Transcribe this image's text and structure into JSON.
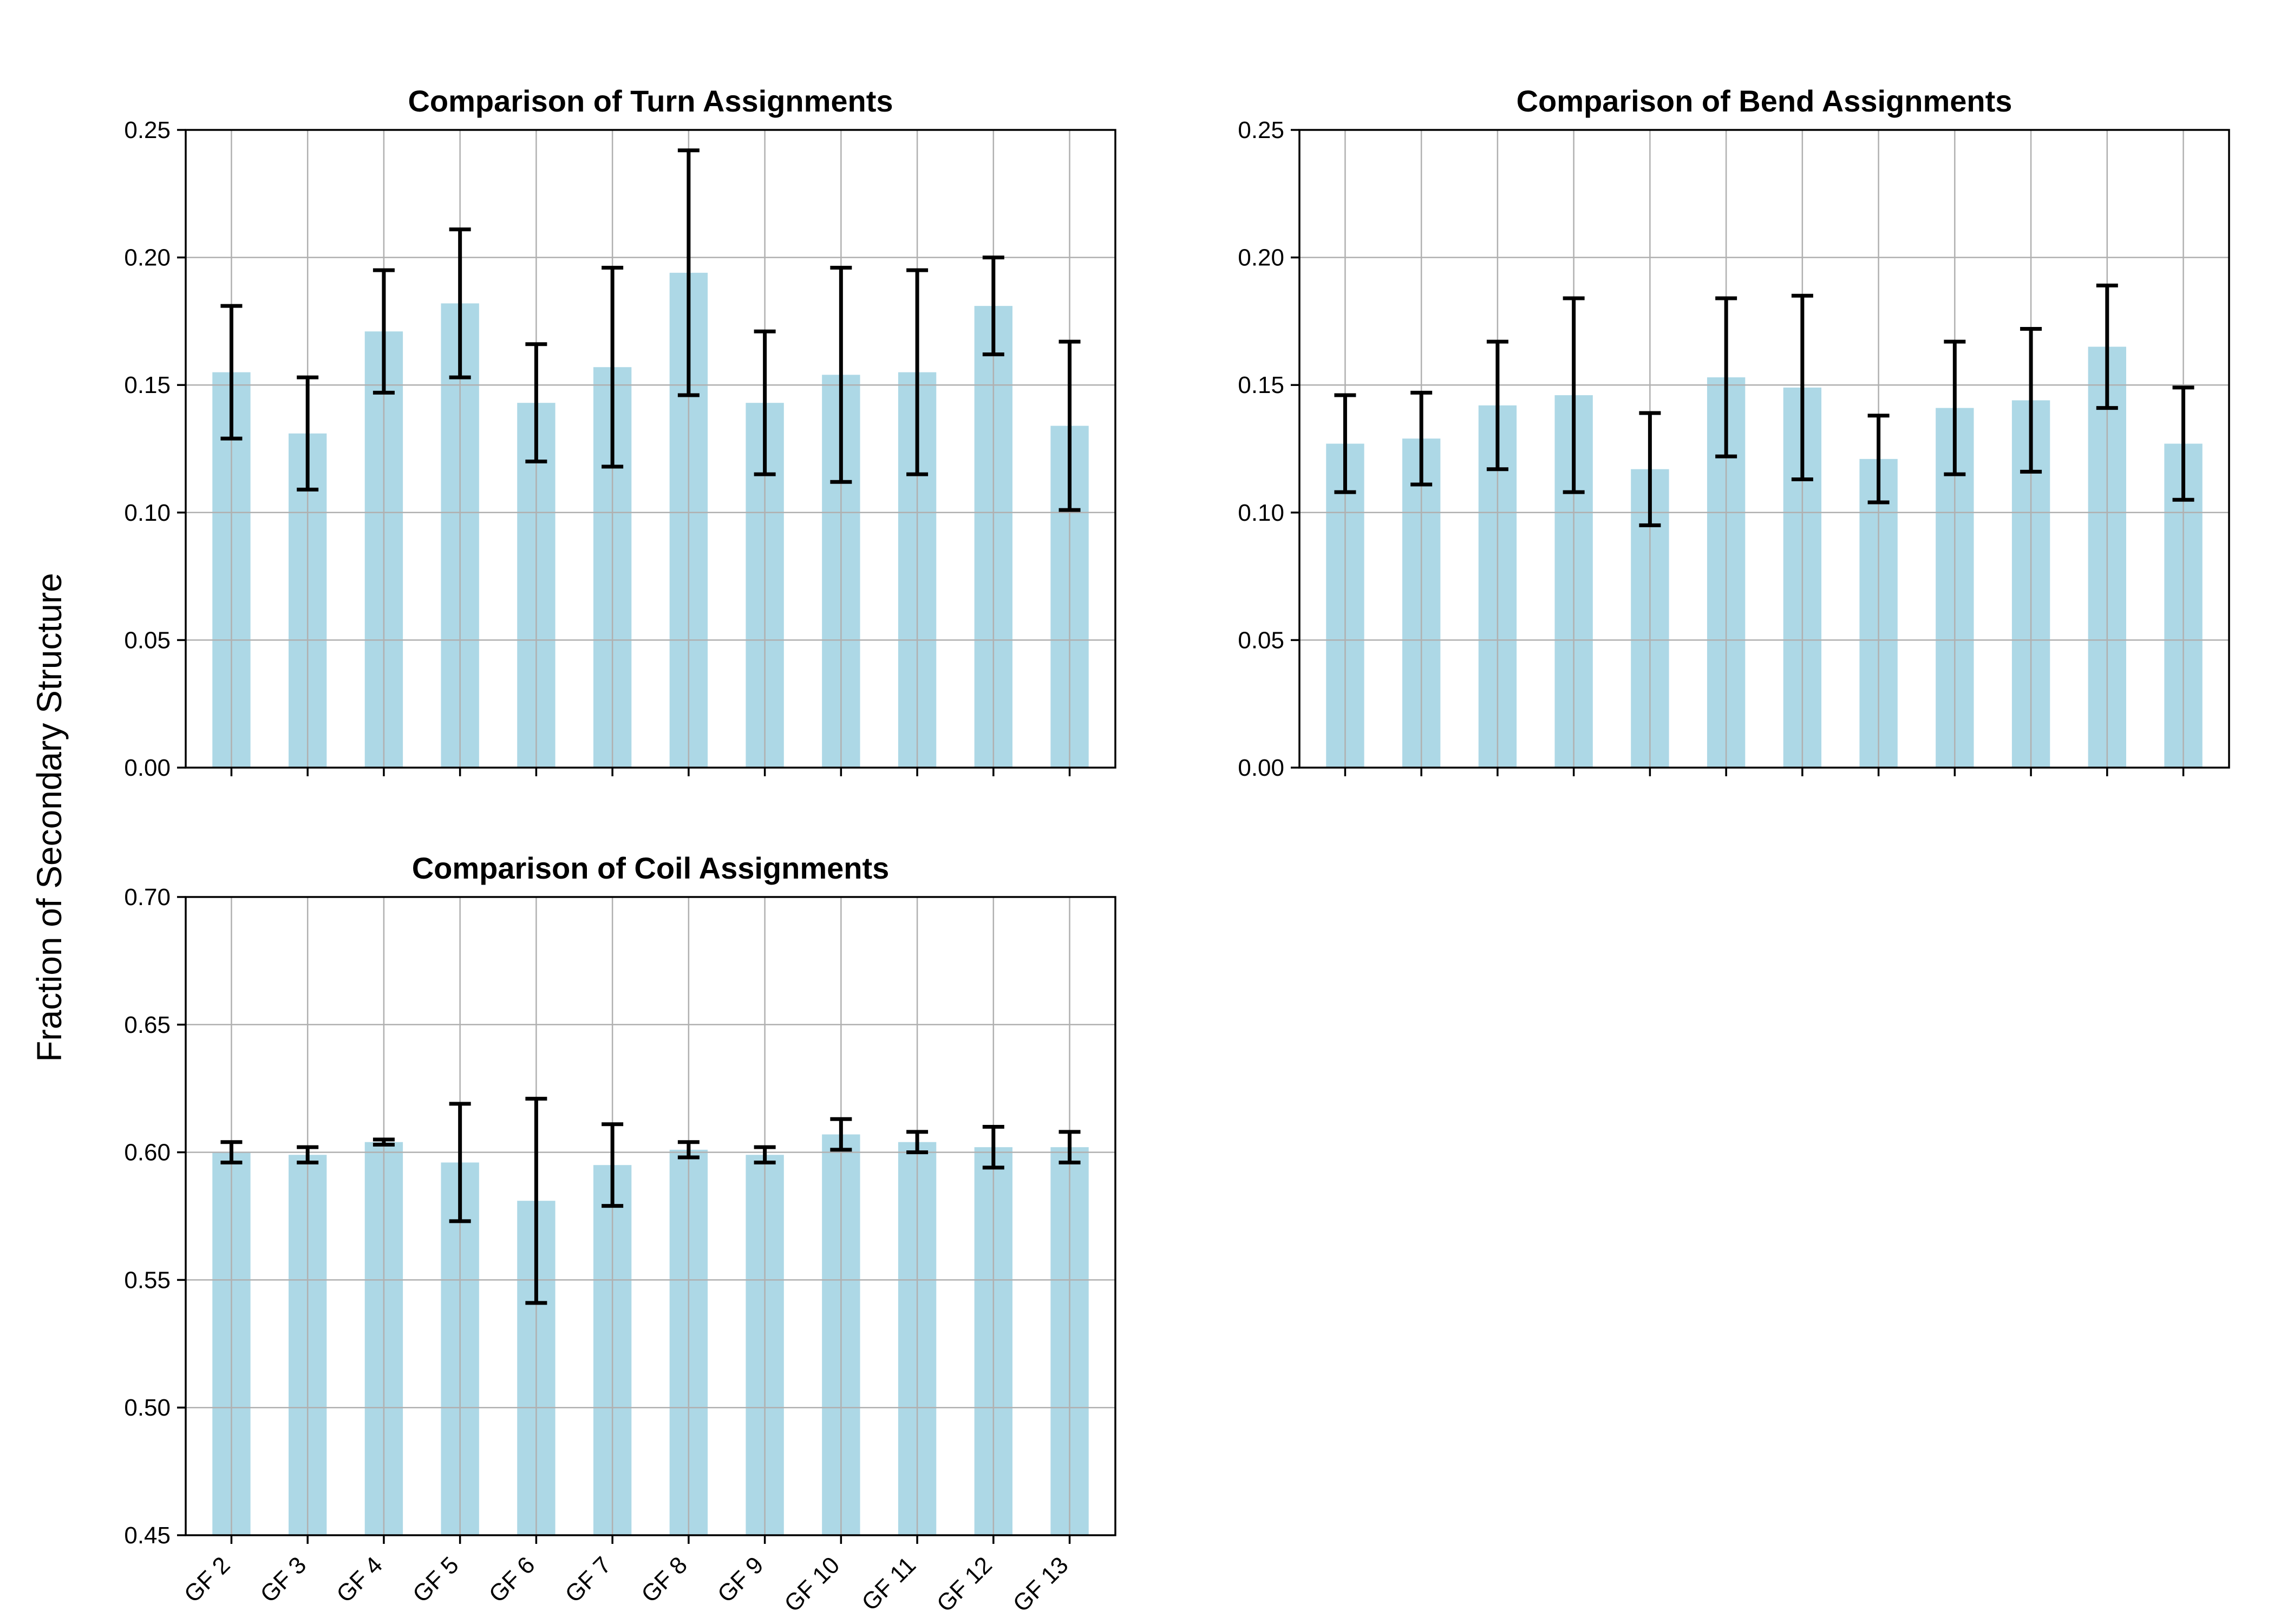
{
  "figure": {
    "ylabel": "Fraction of Secondary Structure"
  },
  "colors": {
    "bar": "#add8e6",
    "error_bar": "#000000",
    "grid": "#b0b0b0",
    "axes": "#000000"
  },
  "chart_data": [
    {
      "type": "bar",
      "title": "Comparison of Turn Assignments",
      "categories": [
        "GF 2",
        "GF 3",
        "GF 4",
        "GF 5",
        "GF 6",
        "GF 7",
        "GF 8",
        "GF 9",
        "GF 10",
        "GF 11",
        "GF 12",
        "GF 13"
      ],
      "values": [
        0.155,
        0.131,
        0.171,
        0.182,
        0.143,
        0.157,
        0.194,
        0.143,
        0.154,
        0.155,
        0.181,
        0.134
      ],
      "error": [
        0.026,
        0.022,
        0.024,
        0.029,
        0.023,
        0.039,
        0.048,
        0.028,
        0.042,
        0.04,
        0.019,
        0.033
      ],
      "ylim": [
        0,
        0.25
      ],
      "yticks": [
        "0.00",
        "0.05",
        "0.10",
        "0.15",
        "0.20",
        "0.25"
      ],
      "show_xtick_labels": false,
      "grid": true
    },
    {
      "type": "bar",
      "title": "Comparison of Bend Assignments",
      "categories": [
        "GF 2",
        "GF 3",
        "GF 4",
        "GF 5",
        "GF 6",
        "GF 7",
        "GF 8",
        "GF 9",
        "GF 10",
        "GF 11",
        "GF 12",
        "GF 13"
      ],
      "values": [
        0.127,
        0.129,
        0.142,
        0.146,
        0.117,
        0.153,
        0.149,
        0.121,
        0.141,
        0.144,
        0.165,
        0.127
      ],
      "error": [
        0.019,
        0.018,
        0.025,
        0.038,
        0.022,
        0.031,
        0.036,
        0.017,
        0.026,
        0.028,
        0.024,
        0.022
      ],
      "ylim": [
        0,
        0.25
      ],
      "yticks": [
        "0.00",
        "0.05",
        "0.10",
        "0.15",
        "0.20",
        "0.25"
      ],
      "show_xtick_labels": false,
      "grid": true
    },
    {
      "type": "bar",
      "title": "Comparison of Coil Assignments",
      "categories": [
        "GF 2",
        "GF 3",
        "GF 4",
        "GF 5",
        "GF 6",
        "GF 7",
        "GF 8",
        "GF 9",
        "GF 10",
        "GF 11",
        "GF 12",
        "GF 13"
      ],
      "values": [
        0.6,
        0.599,
        0.604,
        0.596,
        0.581,
        0.595,
        0.601,
        0.599,
        0.607,
        0.604,
        0.602,
        0.602
      ],
      "error": [
        0.004,
        0.003,
        0.001,
        0.023,
        0.04,
        0.016,
        0.003,
        0.003,
        0.006,
        0.004,
        0.008,
        0.006
      ],
      "ylim": [
        0.45,
        0.7
      ],
      "yticks": [
        "0.45",
        "0.50",
        "0.55",
        "0.60",
        "0.65",
        "0.70"
      ],
      "show_xtick_labels": true,
      "grid": true
    }
  ]
}
